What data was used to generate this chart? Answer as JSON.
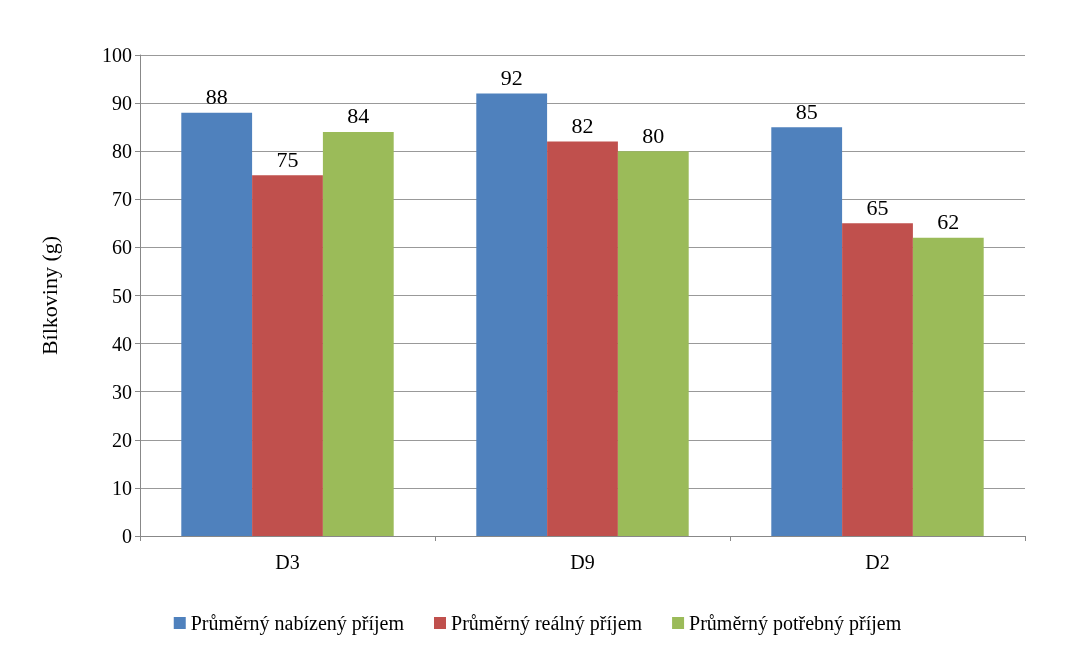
{
  "chart_data": {
    "type": "bar",
    "ylabel": "Bílkoviny (g)",
    "categories": [
      "D3",
      "D9",
      "D2"
    ],
    "series": [
      {
        "name": "Průměrný nabízený příjem",
        "color": "#4f81bd",
        "values": [
          88,
          92,
          85
        ]
      },
      {
        "name": "Průměrný reálný příjem",
        "color": "#c0504d",
        "values": [
          75,
          82,
          65
        ]
      },
      {
        "name": "Průměrný potřebný příjem",
        "color": "#9bbb59",
        "values": [
          84,
          80,
          62
        ]
      }
    ],
    "ylim": [
      0,
      100
    ],
    "yticks": [
      0,
      10,
      20,
      30,
      40,
      50,
      60,
      70,
      80,
      90,
      100
    ],
    "grid": "y",
    "legend": "bottom",
    "data_labels": true
  }
}
